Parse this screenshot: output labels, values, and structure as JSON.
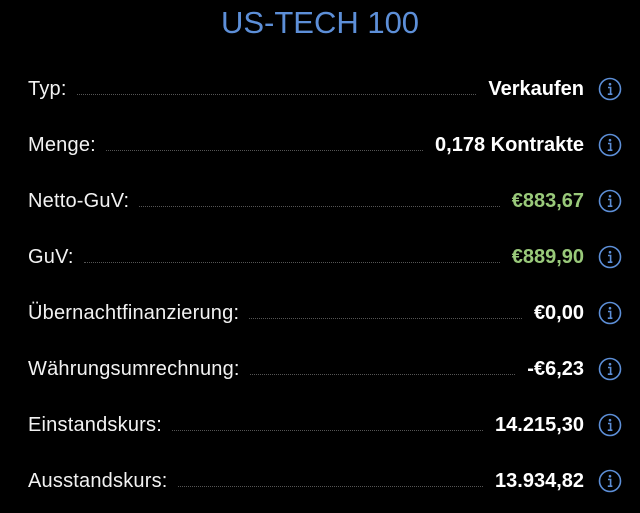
{
  "header": {
    "title": "US-TECH 100"
  },
  "rows": [
    {
      "label": "Typ:",
      "value": "Verkaufen",
      "color": "#ffffff"
    },
    {
      "label": "Menge:",
      "value": "0,178 Kontrakte",
      "color": "#ffffff"
    },
    {
      "label": "Netto-GuV:",
      "value": "€883,67",
      "color": "#99c97a"
    },
    {
      "label": "GuV:",
      "value": "€889,90",
      "color": "#99c97a"
    },
    {
      "label": "Übernachtfinanzierung:",
      "value": "€0,00",
      "color": "#ffffff"
    },
    {
      "label": "Währungsumrechnung:",
      "value": "-€6,23",
      "color": "#ffffff"
    },
    {
      "label": "Einstandskurs:",
      "value": "14.215,30",
      "color": "#ffffff"
    },
    {
      "label": "Ausstandskurs:",
      "value": "13.934,82",
      "color": "#ffffff"
    }
  ]
}
